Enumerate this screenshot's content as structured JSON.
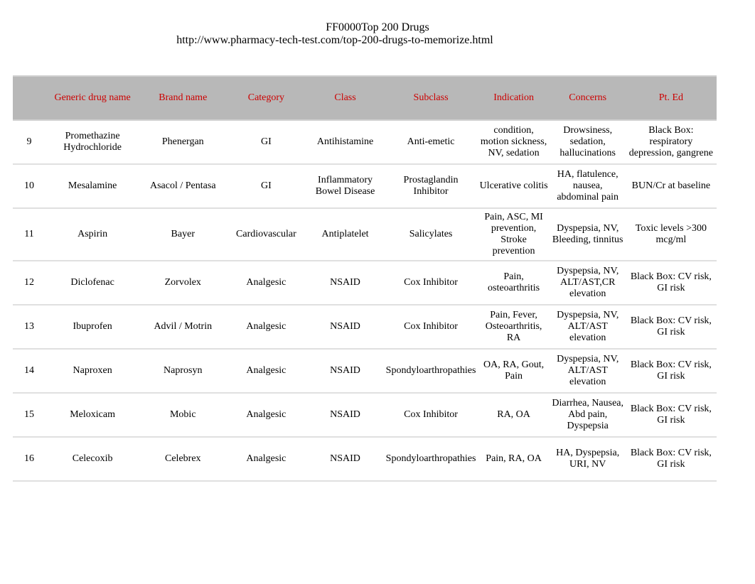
{
  "header": {
    "title": "FF0000Top 200 Drugs",
    "url": "http://www.pharmacy-tech-test.com/top-200-drugs-to-memorize.html"
  },
  "table": {
    "header_color": "#cc0000",
    "header_bg": "#b8b8b8",
    "row_border_color": "#e0e0e0",
    "columns": [
      "",
      "Generic drug name",
      "Brand name",
      "Category",
      "Class",
      "Subclass",
      "Indication",
      "Concerns",
      "Pt. Ed"
    ],
    "rows": [
      {
        "num": "9",
        "generic": "Promethazine Hydrochloride",
        "brand": "Phenergan",
        "category": "GI",
        "class": "Antihistamine",
        "subclass": "Anti-emetic",
        "indication": "condition, motion sickness, NV, sedation",
        "concerns": "Drowsiness, sedation, hallucinations",
        "pted": "Black Box: respiratory depression, gangrene"
      },
      {
        "num": "10",
        "generic": "Mesalamine",
        "brand": "Asacol / Pentasa",
        "category": "GI",
        "class": "Inflammatory Bowel Disease",
        "subclass": "Prostaglandin Inhibitor",
        "indication": "Ulcerative colitis",
        "concerns": "HA, flatulence, nausea, abdominal pain",
        "pted": "BUN/Cr at baseline"
      },
      {
        "num": "11",
        "generic": "Aspirin",
        "brand": "Bayer",
        "category": "Cardiovascular",
        "class": "Antiplatelet",
        "subclass": "Salicylates",
        "indication": "Pain, ASC, MI prevention, Stroke prevention",
        "concerns": "Dyspepsia, NV, Bleeding, tinnitus",
        "pted": "Toxic levels >300 mcg/ml"
      },
      {
        "num": "12",
        "generic": "Diclofenac",
        "brand": "Zorvolex",
        "category": "Analgesic",
        "class": "NSAID",
        "subclass": "Cox Inhibitor",
        "indication": "Pain, osteoarthritis",
        "concerns": "Dyspepsia, NV, ALT/AST,CR elevation",
        "pted": "Black Box: CV risk, GI risk"
      },
      {
        "num": "13",
        "generic": "Ibuprofen",
        "brand": "Advil / Motrin",
        "category": "Analgesic",
        "class": "NSAID",
        "subclass": "Cox Inhibitor",
        "indication": "Pain, Fever, Osteoarthritis, RA",
        "concerns": "Dyspepsia, NV, ALT/AST elevation",
        "pted": "Black Box: CV risk, GI risk"
      },
      {
        "num": "14",
        "generic": "Naproxen",
        "brand": "Naprosyn",
        "category": "Analgesic",
        "class": "NSAID",
        "subclass": "Spondyloarthropathies",
        "indication": "OA, RA, Gout, Pain",
        "concerns": "Dyspepsia, NV, ALT/AST elevation",
        "pted": "Black Box: CV risk, GI risk"
      },
      {
        "num": "15",
        "generic": "Meloxicam",
        "brand": "Mobic",
        "category": "Analgesic",
        "class": "NSAID",
        "subclass": "Cox Inhibitor",
        "indication": "RA, OA",
        "concerns": "Diarrhea, Nausea, Abd pain, Dyspepsia",
        "pted": "Black Box: CV risk, GI risk"
      },
      {
        "num": "16",
        "generic": "Celecoxib",
        "brand": "Celebrex",
        "category": "Analgesic",
        "class": "NSAID",
        "subclass": "Spondyloarthropathies",
        "indication": "Pain, RA, OA",
        "concerns": "HA, Dyspepsia, URI, NV",
        "pted": "Black Box: CV risk, GI risk"
      }
    ]
  }
}
